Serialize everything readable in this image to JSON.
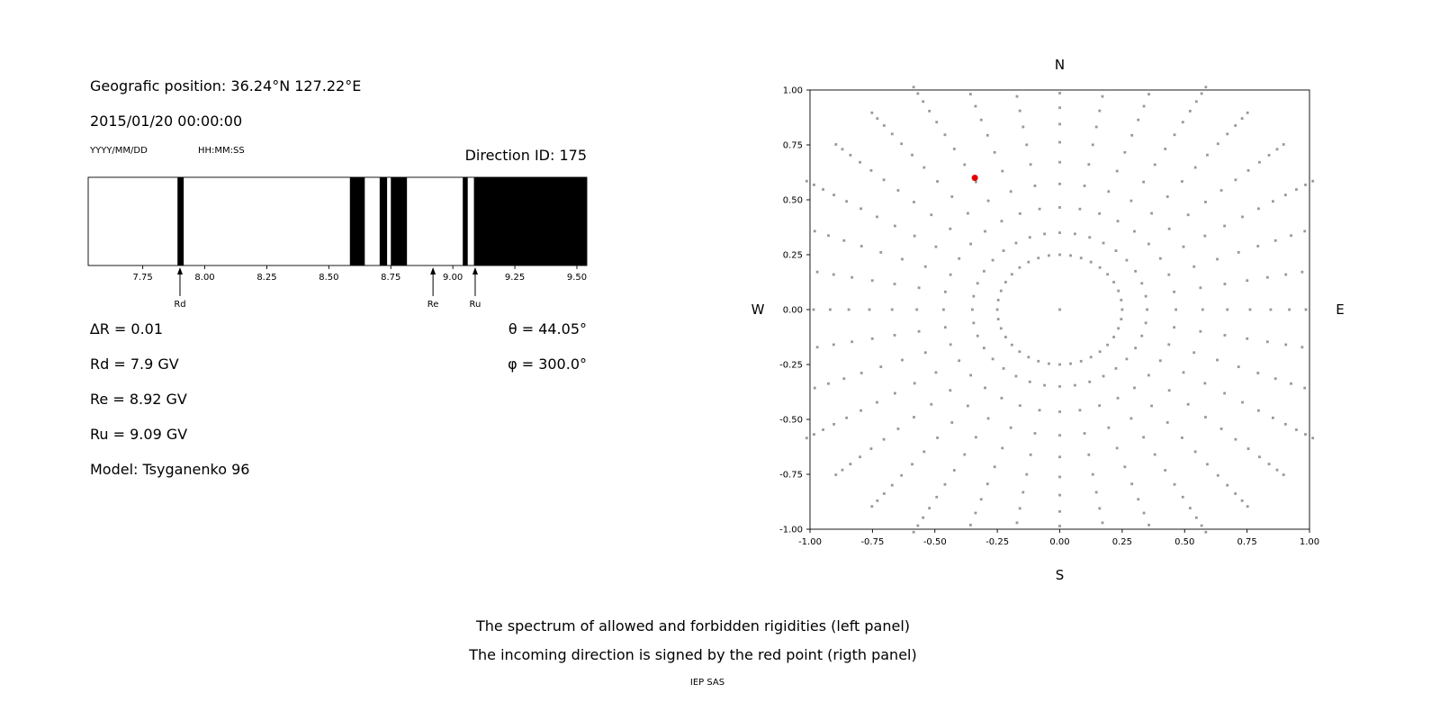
{
  "info_panel": {
    "geographic_position": "Geografic position: 36.24°N 127.22°E",
    "datetime": "2015/01/20 00:00:00",
    "date_format": "YYYY/MM/DD",
    "time_format": "HH:MM:SS",
    "delta_r": "∆R = 0.01",
    "theta": "θ = 44.05°",
    "rd": "Rd = 7.9 GV",
    "phi": "φ = 300.0°",
    "re": "Re = 8.92 GV",
    "ru": "Ru = 9.09 GV",
    "model": "Model: Tsyganenko 96"
  },
  "caption": {
    "line1": "The spectrum of allowed and forbidden rigidities (left panel)",
    "line2": "The incoming direction is signed by the red point (rigth panel)",
    "credit": "IEP SAS"
  },
  "chart_data": [
    {
      "type": "bar",
      "name": "rigidity-spectrum-barcode",
      "title": "Direction ID: 175",
      "xlim": [
        7.53,
        9.54
      ],
      "xticks": [
        7.75,
        8.0,
        8.25,
        8.5,
        8.75,
        9.0,
        9.25,
        9.5
      ],
      "xtick_labels": [
        "7.75",
        "8.00",
        "8.25",
        "8.50",
        "8.75",
        "9.00",
        "9.25",
        "9.50"
      ],
      "allowed_color": "#ffffff",
      "forbidden_color": "#000000",
      "forbidden_bands": [
        [
          7.89,
          7.915
        ],
        [
          8.585,
          8.645
        ],
        [
          8.705,
          8.735
        ],
        [
          8.75,
          8.815
        ],
        [
          9.04,
          9.06
        ],
        [
          9.085,
          9.54
        ]
      ],
      "markers": [
        {
          "label": "Rd",
          "x": 7.9
        },
        {
          "label": "Re",
          "x": 8.92
        },
        {
          "label": "Ru",
          "x": 9.09
        }
      ]
    },
    {
      "type": "scatter",
      "name": "incoming-direction-map",
      "xlim": [
        -1.0,
        1.0
      ],
      "ylim": [
        -1.0,
        1.0
      ],
      "xticks": [
        -1.0,
        -0.75,
        -0.5,
        -0.25,
        0.0,
        0.25,
        0.5,
        0.75,
        1.0
      ],
      "xtick_labels": [
        "-1.00",
        "-0.75",
        "-0.50",
        "-0.25",
        "0.00",
        "0.25",
        "0.50",
        "0.75",
        "1.00"
      ],
      "yticks": [
        -1.0,
        -0.75,
        -0.5,
        -0.25,
        0.0,
        0.25,
        0.5,
        0.75,
        1.0
      ],
      "ytick_labels": [
        "-1.00",
        "-0.75",
        "-0.50",
        "-0.25",
        "0.00",
        "0.25",
        "0.50",
        "0.75",
        "1.00"
      ],
      "compass": {
        "top": "N",
        "bottom": "S",
        "left": "W",
        "right": "E"
      },
      "dot_color": "#989898",
      "spokes": {
        "count": 36,
        "step_deg": 10,
        "start_deg": 0,
        "r_min": 0.35,
        "r_max": 1.17,
        "dots_per_spoke": 12,
        "taper": 0.6
      },
      "inner_ring": {
        "radius": 0.25,
        "dot_count": 36
      },
      "center_dot": true,
      "red_point": {
        "x": -0.34,
        "y": 0.6,
        "color": "#e00000"
      }
    }
  ]
}
